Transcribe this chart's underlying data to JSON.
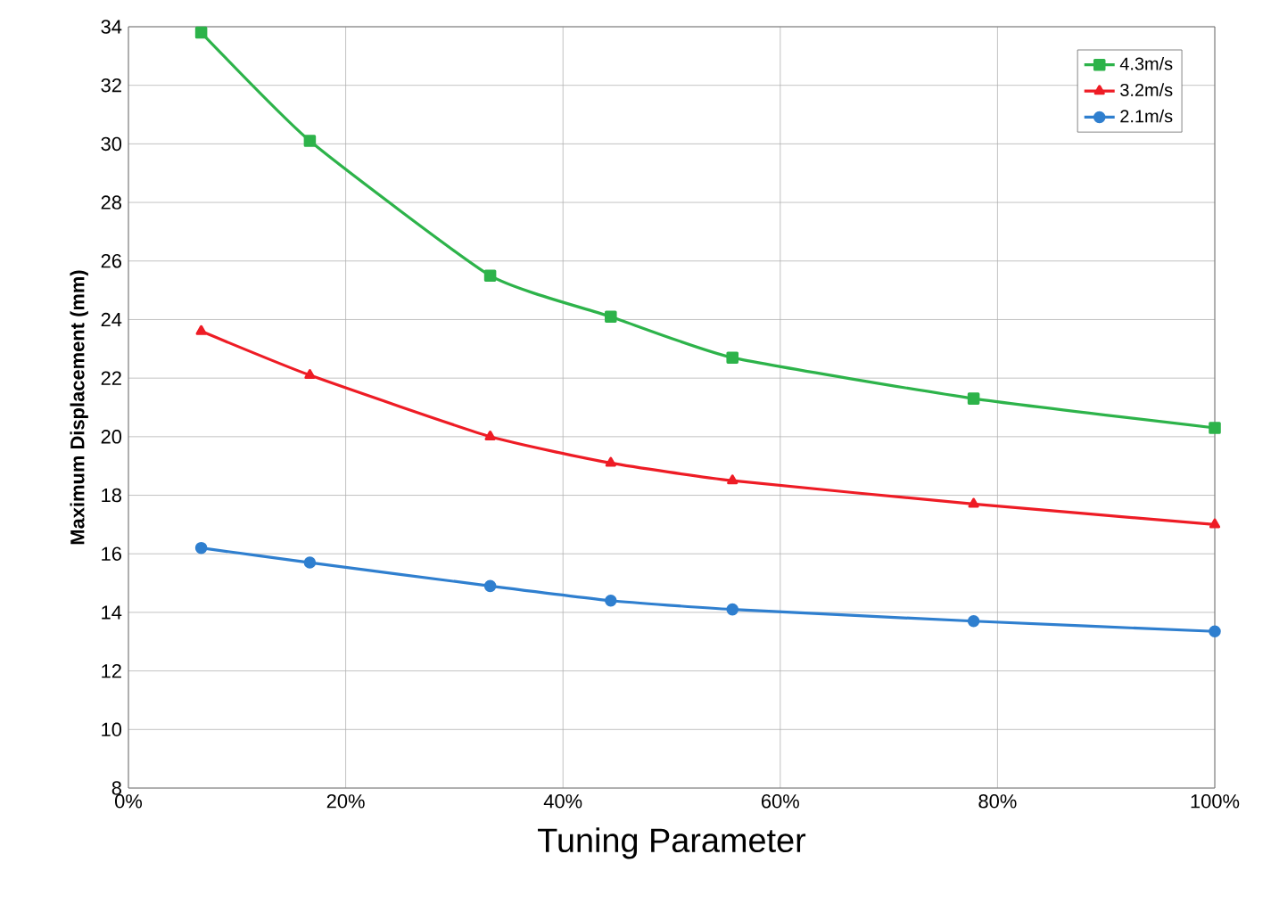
{
  "chart_data": {
    "type": "line",
    "xlabel": "Tuning Parameter",
    "ylabel": "Maximum Displacement (mm)",
    "xlim": [
      0,
      100
    ],
    "ylim": [
      8,
      34
    ],
    "xticks": [
      {
        "value": 0,
        "label": "0%"
      },
      {
        "value": 20,
        "label": "20%"
      },
      {
        "value": 40,
        "label": "40%"
      },
      {
        "value": 60,
        "label": "60%"
      },
      {
        "value": 80,
        "label": "80%"
      },
      {
        "value": 100,
        "label": "100%"
      }
    ],
    "yticks": [
      8,
      10,
      12,
      14,
      16,
      18,
      20,
      22,
      24,
      26,
      28,
      30,
      32,
      34
    ],
    "x": [
      6.7,
      16.7,
      33.3,
      44.4,
      55.6,
      77.8,
      100
    ],
    "series": [
      {
        "name": "4.3m/s",
        "color": "#2db34a",
        "marker": "square",
        "values": [
          33.8,
          30.1,
          25.5,
          24.1,
          22.7,
          21.3,
          20.3
        ]
      },
      {
        "name": "3.2m/s",
        "color": "#ee1c25",
        "marker": "triangle",
        "values": [
          23.6,
          22.1,
          20.0,
          19.1,
          18.5,
          17.7,
          17.0
        ]
      },
      {
        "name": "2.1m/s",
        "color": "#2f7fcf",
        "marker": "circle",
        "values": [
          16.2,
          15.7,
          14.9,
          14.4,
          14.1,
          13.7,
          13.35
        ]
      }
    ],
    "grid": true,
    "legend": "top right",
    "line_style": "solid"
  }
}
